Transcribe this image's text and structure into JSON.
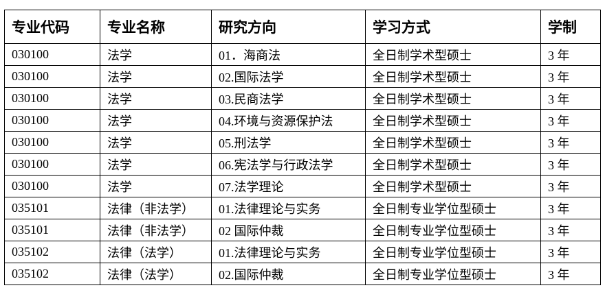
{
  "table": {
    "headers": [
      "专业代码",
      "专业名称",
      "研究方向",
      "学习方式",
      "学制"
    ],
    "rows": [
      [
        "030100",
        "法学",
        "01．海商法",
        "全日制学术型硕士",
        "3 年"
      ],
      [
        "030100",
        "法学",
        "02.国际法学",
        "全日制学术型硕士",
        "3 年"
      ],
      [
        "030100",
        "法学",
        "03.民商法学",
        "全日制学术型硕士",
        "3 年"
      ],
      [
        "030100",
        "法学",
        "04.环境与资源保护法",
        "全日制学术型硕士",
        "3 年"
      ],
      [
        "030100",
        "法学",
        "05.刑法学",
        "全日制学术型硕士",
        "3 年"
      ],
      [
        "030100",
        "法学",
        "06.宪法学与行政法学",
        "全日制学术型硕士",
        "3 年"
      ],
      [
        "030100",
        "法学",
        "07.法学理论",
        "全日制学术型硕士",
        "3 年"
      ],
      [
        "035101",
        "法律（非法学）",
        "01.法律理论与实务",
        "全日制专业学位型硕士",
        "3 年"
      ],
      [
        "035101",
        "法律（非法学）",
        "02 国际仲裁",
        "全日制专业学位型硕士",
        "3 年"
      ],
      [
        "035102",
        "法律（法学）",
        "01.法律理论与实务",
        "全日制专业学位型硕士",
        "3 年"
      ],
      [
        "035102",
        "法律（法学）",
        "02.国际仲裁",
        "全日制专业学位型硕士",
        "3 年"
      ]
    ]
  }
}
